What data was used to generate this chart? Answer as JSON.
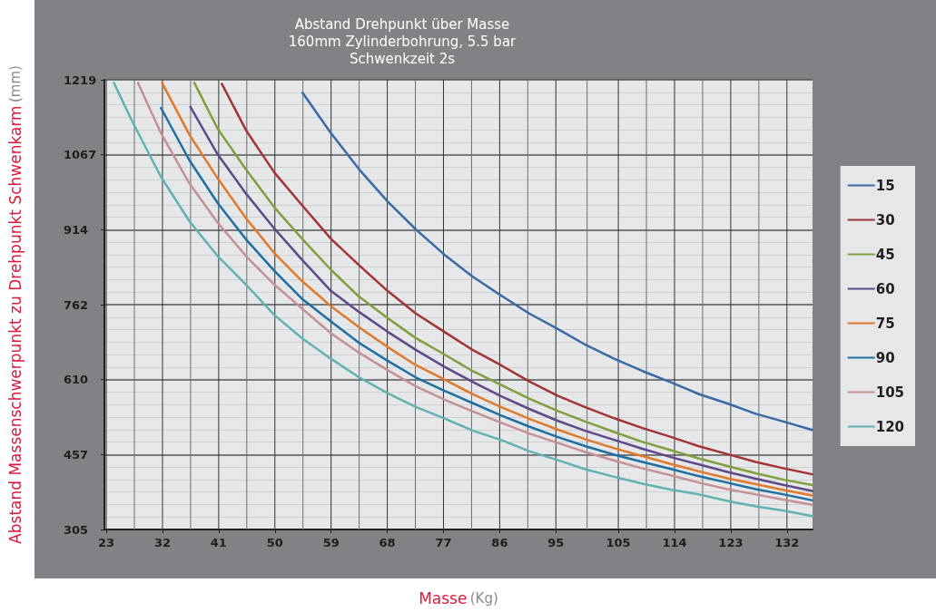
{
  "chart_data": {
    "type": "line",
    "title": "Abstand Drehpunkt über Masse",
    "subtitle": "160mm Zylinderbohrung, 5.5 bar\nSchwenkzeit 2s",
    "xlabel": "Masse (Kg)",
    "ylabel": "Abstand Massenschwerpunkt zu Drehpunkt Schwenkarm (mm)",
    "xlim": [
      22.7,
      136.1
    ],
    "xticks": [
      23,
      32,
      41,
      50,
      59,
      68,
      77,
      86,
      95,
      105,
      114,
      123,
      132
    ],
    "ylim": [
      304.8,
      1219.2
    ],
    "yticks": [
      {
        "value": 304.8,
        "label": "305"
      },
      {
        "value": 457.2,
        "label": "457"
      },
      {
        "value": 609.6,
        "label": "610"
      },
      762,
      {
        "value": 914.4,
        "label": "914"
      },
      {
        "value": 1066.8,
        "label": "1067"
      },
      {
        "value": 1219.2,
        "label": "1219"
      }
    ],
    "grid": true,
    "legend": "right",
    "marker": "none",
    "series": [
      {
        "name": "15",
        "color": "#3a6aa6",
        "x": [
          54.43,
          58.97,
          63.5,
          68.04,
          72.57,
          77.11,
          81.65,
          86.18,
          90.72,
          95.25,
          99.79,
          104.33,
          108.86,
          113.4,
          117.93,
          122.47,
          127.01,
          131.54,
          136.08
        ],
        "values": [
          1193,
          1111,
          1037,
          972,
          915,
          864,
          819,
          781,
          744,
          713,
          680,
          652,
          627,
          604,
          580,
          561,
          540,
          524,
          507
        ]
      },
      {
        "name": "30",
        "color": "#a33434",
        "x": [
          41.5,
          45.36,
          49.9,
          54.43,
          58.97,
          63.5,
          68.04,
          72.57,
          77.11,
          81.65,
          86.18,
          90.72,
          95.25,
          99.79,
          104.33,
          108.86,
          113.4,
          117.93,
          122.47,
          127.01,
          131.54,
          136.08
        ],
        "values": [
          1211,
          1117,
          1031,
          963,
          896,
          842,
          790,
          744,
          707,
          670,
          639,
          606,
          577,
          553,
          531,
          511,
          493,
          474,
          458,
          442,
          429,
          417
        ]
      },
      {
        "name": "45",
        "color": "#7ea13c",
        "x": [
          37.1,
          40.82,
          45.36,
          49.9,
          54.43,
          58.97,
          63.5,
          68.04,
          72.57,
          77.11,
          81.65,
          86.18,
          90.72,
          95.25,
          99.79,
          104.33,
          108.86,
          113.4,
          117.93,
          122.47,
          127.01,
          131.54,
          136.08
        ],
        "values": [
          1213,
          1120,
          1037,
          960,
          895,
          833,
          778,
          735,
          694,
          661,
          627,
          599,
          571,
          546,
          524,
          503,
          483,
          466,
          449,
          434,
          419,
          406,
          395
        ]
      },
      {
        "name": "60",
        "color": "#5e4a8a",
        "x": [
          36.47,
          40.82,
          45.36,
          49.9,
          54.43,
          58.97,
          63.5,
          68.04,
          72.57,
          77.11,
          81.65,
          86.18,
          90.72,
          95.25,
          99.79,
          104.33,
          108.86,
          113.4,
          117.93,
          122.47,
          127.01,
          131.54,
          136.08
        ],
        "values": [
          1164,
          1068,
          988,
          917,
          852,
          790,
          747,
          707,
          670,
          636,
          605,
          576,
          550,
          526,
          505,
          487,
          469,
          452,
          437,
          422,
          408,
          395,
          383
        ]
      },
      {
        "name": "75",
        "color": "#e07a2a",
        "x": [
          31.93,
          36.29,
          40.82,
          45.36,
          49.9,
          54.43,
          58.97,
          63.5,
          68.04,
          72.57,
          77.11,
          81.65,
          86.18,
          90.72,
          95.25,
          99.79,
          104.33,
          108.86,
          113.4,
          117.93,
          122.47,
          127.01,
          131.54,
          136.08
        ],
        "values": [
          1213,
          1108,
          1019,
          938,
          867,
          809,
          759,
          716,
          676,
          639,
          610,
          580,
          554,
          530,
          508,
          488,
          470,
          454,
          438,
          423,
          409,
          397,
          385,
          374
        ]
      },
      {
        "name": "90",
        "color": "#1c6fa3",
        "x": [
          31.75,
          36.29,
          40.82,
          45.36,
          49.9,
          54.43,
          58.97,
          63.5,
          68.04,
          72.57,
          77.11,
          81.65,
          86.18,
          90.72,
          95.25,
          99.79,
          104.33,
          108.86,
          113.4,
          117.93,
          122.47,
          127.01,
          131.54,
          136.08
        ],
        "values": [
          1162,
          1056,
          969,
          895,
          831,
          773,
          728,
          684,
          648,
          614,
          587,
          562,
          537,
          514,
          493,
          474,
          457,
          442,
          428,
          413,
          400,
          387,
          376,
          364
        ]
      },
      {
        "name": "105",
        "color": "#c49195",
        "x": [
          28.08,
          31.75,
          36.29,
          40.82,
          45.36,
          49.9,
          54.43,
          58.97,
          63.5,
          68.04,
          72.57,
          77.11,
          81.65,
          86.18,
          90.72,
          95.25,
          99.79,
          104.33,
          108.86,
          113.4,
          117.93,
          122.47,
          127.01,
          131.54,
          136.08
        ],
        "values": [
          1213,
          1111,
          1009,
          929,
          861,
          803,
          753,
          704,
          664,
          629,
          596,
          569,
          545,
          522,
          500,
          481,
          462,
          445,
          429,
          415,
          400,
          387,
          376,
          365,
          355
        ]
      },
      {
        "name": "120",
        "color": "#5fb3b0",
        "x": [
          24.22,
          27.22,
          31.75,
          36.29,
          40.82,
          45.36,
          49.9,
          54.43,
          58.97,
          63.5,
          68.04,
          72.57,
          77.11,
          81.65,
          86.18,
          90.72,
          95.25,
          99.79,
          104.33,
          108.86,
          113.4,
          117.93,
          122.47,
          127.01,
          131.54,
          136.08
        ],
        "values": [
          1213,
          1133,
          1022,
          932,
          861,
          803,
          741,
          693,
          652,
          614,
          582,
          554,
          531,
          506,
          487,
          464,
          446,
          427,
          412,
          398,
          386,
          376,
          363,
          352,
          343,
          332
        ]
      }
    ]
  }
}
